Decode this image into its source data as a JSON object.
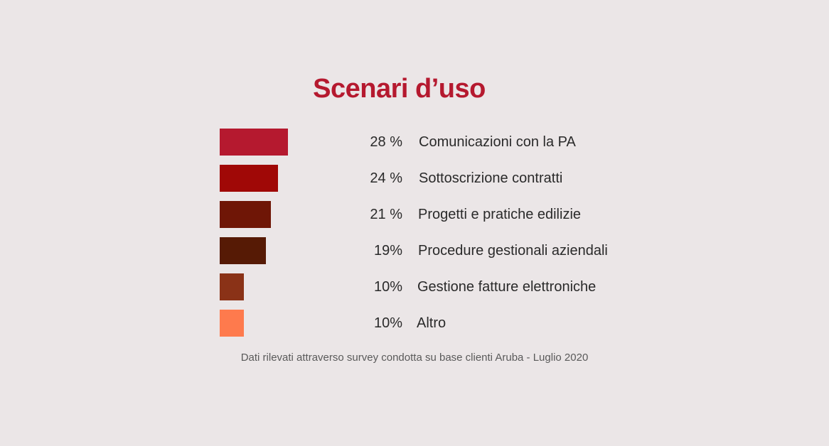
{
  "colors": {
    "title": "#b5192f",
    "background": "#ebe6e7"
  },
  "chart_data": {
    "type": "bar",
    "orientation": "horizontal",
    "title": "Scenari d’uso",
    "footnote": "Dati rilevati attraverso survey condotta  su base clienti  Aruba - Luglio 2020",
    "bars": [
      {
        "label": "Comunicazioni con la PA",
        "value": 28,
        "display": "28 %",
        "color": "#b5192f"
      },
      {
        "label": "Sottoscrizione contratti",
        "value": 24,
        "display": "24 %",
        "color": "#a00806"
      },
      {
        "label": "Progetti e pratiche edilizie",
        "value": 21,
        "display": "21 %",
        "color": "#6f1606"
      },
      {
        "label": "Procedure gestionali aziendali",
        "value": 19,
        "display": "19%",
        "color": "#561a05"
      },
      {
        "label": "Gestione fatture elettroniche",
        "value": 10,
        "display": "10%",
        "color": "#8a3217"
      },
      {
        "label": "Altro",
        "value": 10,
        "display": "10%",
        "color": "#fe7a4d"
      }
    ]
  }
}
